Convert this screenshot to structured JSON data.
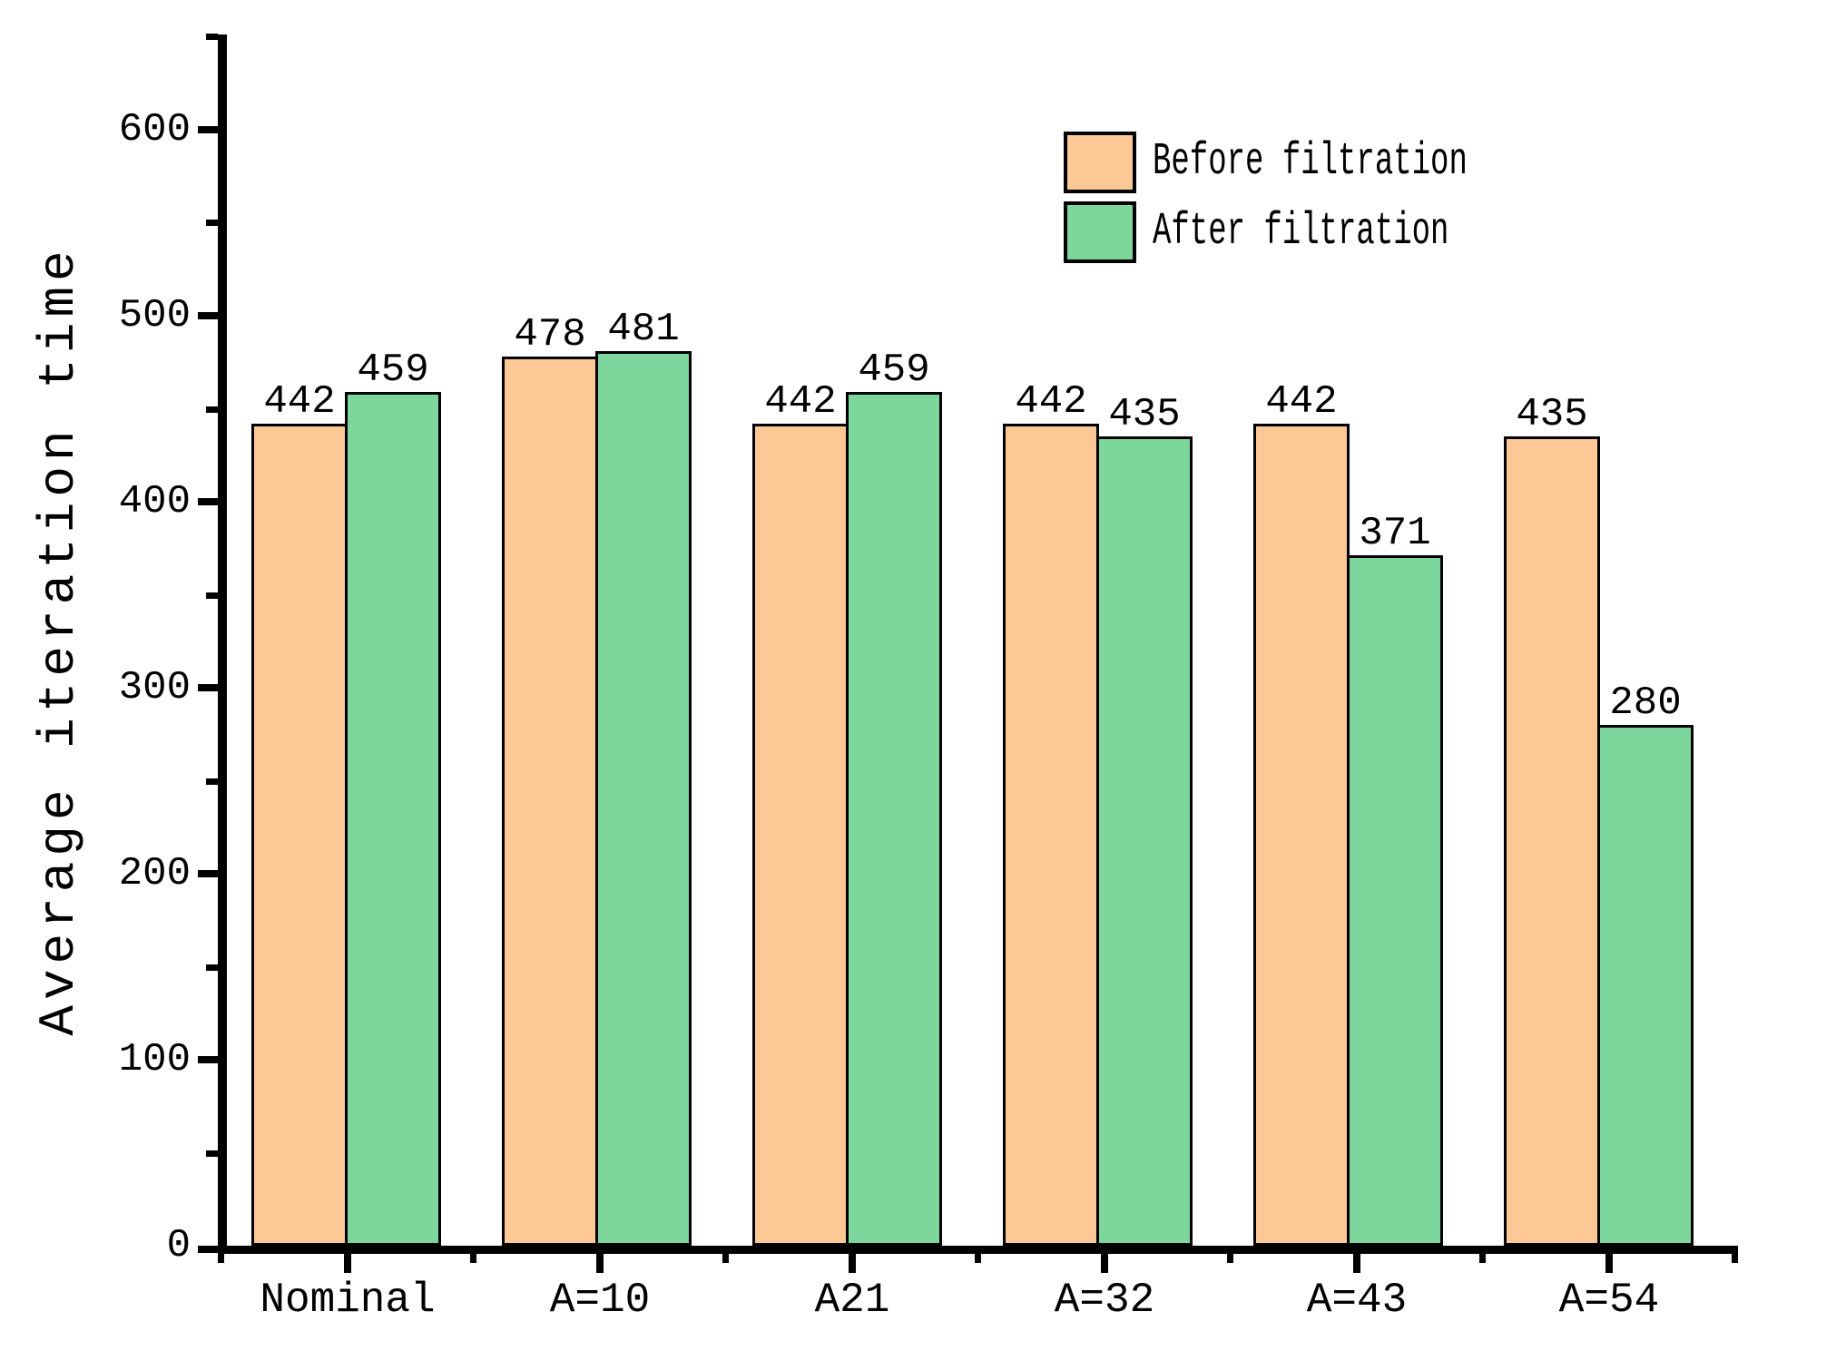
{
  "chart_data": {
    "type": "bar",
    "title": "",
    "xlabel": "",
    "ylabel": "Average iteration time",
    "ylim": [
      0,
      650
    ],
    "yticks": [
      "0",
      "100",
      "200",
      "300",
      "400",
      "500",
      "600"
    ],
    "categories": [
      "Nominal",
      "A=10",
      "A21",
      "A=32",
      "A=43",
      "A=54"
    ],
    "series": [
      {
        "name": "Before filtration",
        "color": "#FCC896",
        "values": [
          442,
          478,
          442,
          442,
          442,
          435
        ]
      },
      {
        "name": "After filtration",
        "color": "#7DD69C",
        "values": [
          459,
          481,
          459,
          435,
          371,
          280
        ]
      }
    ],
    "bar_value_labels_shown": true,
    "legend_position": "top-right",
    "grid": false,
    "axis_color": "#000000",
    "background_color": "#ffffff"
  }
}
